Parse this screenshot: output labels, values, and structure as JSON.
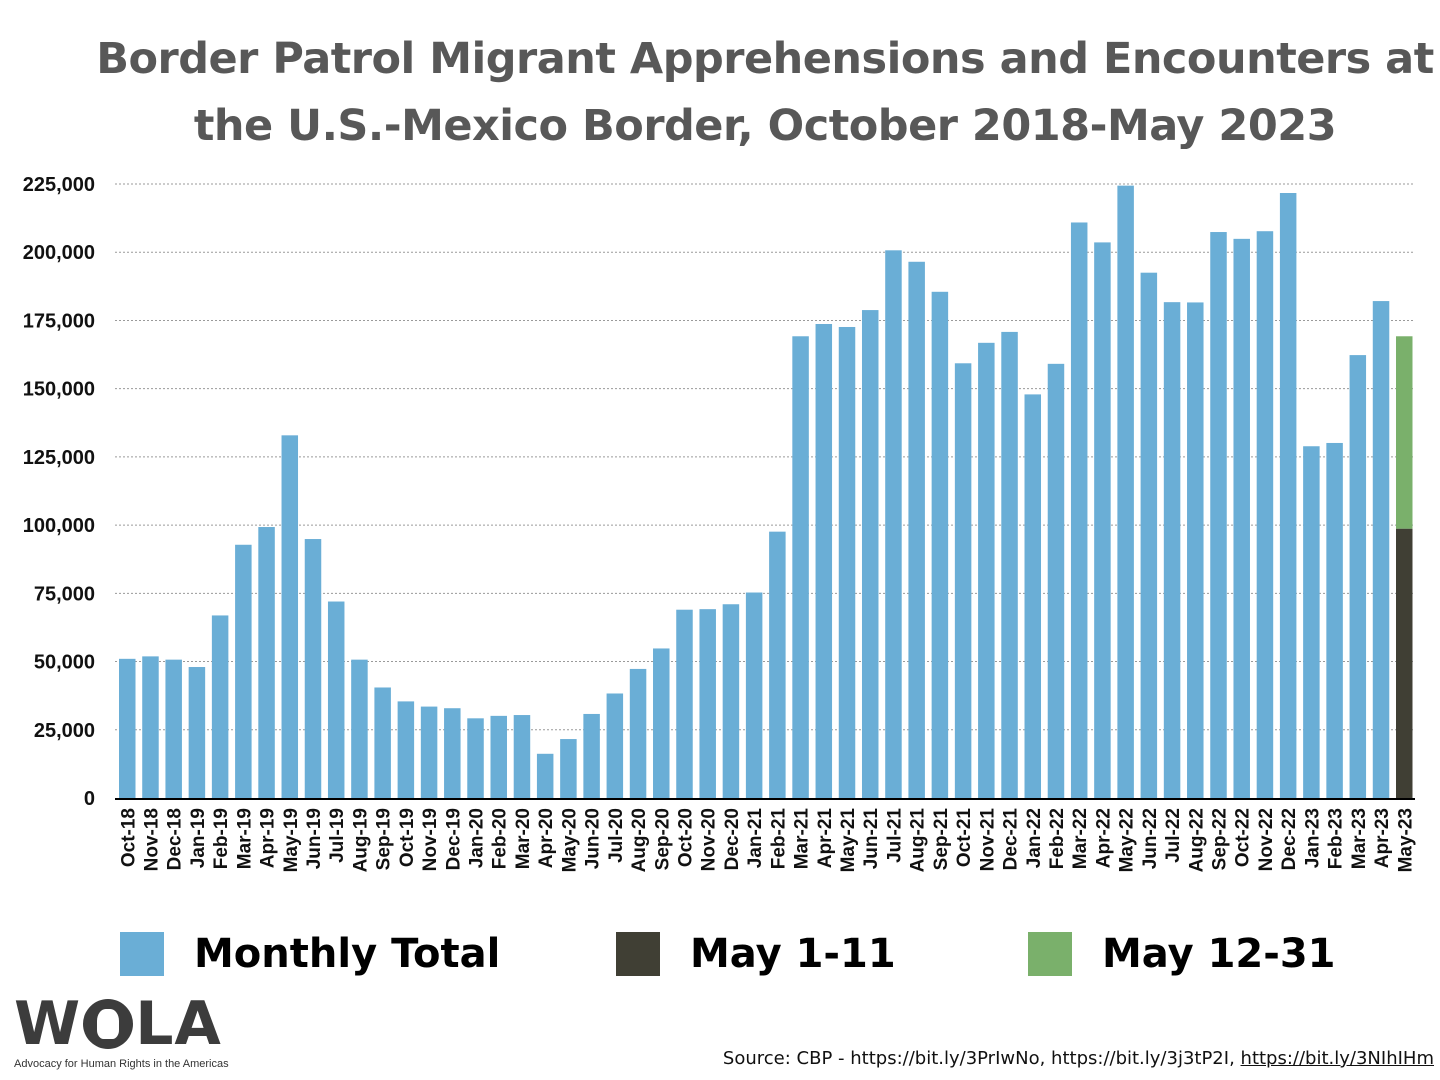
{
  "title_line1": "Border Patrol Migrant Apprehensions and Encounters at",
  "title_line2": "the U.S.-Mexico Border, October 2018-May 2023",
  "colors": {
    "monthly_total": "#6aaed6",
    "may_1_11": "#403f34",
    "may_12_31": "#7ab06b",
    "title": "#585858",
    "grid": "#9a9a9a"
  },
  "legend": [
    {
      "label": "Monthly Total",
      "color": "#6aaed6"
    },
    {
      "label": "May 1-11",
      "color": "#403f34"
    },
    {
      "label": "May 12-31",
      "color": "#7ab06b"
    }
  ],
  "logo": {
    "name": "WOLA",
    "tagline": "Advocacy for Human Rights in the Americas"
  },
  "source": {
    "prefix": "Source: CBP - ",
    "link1": "https://bit.ly/3PrIwNo",
    "sep1": ", ",
    "link2": "https://bit.ly/3j3tP2I",
    "sep2": ", ",
    "link3": "https://bit.ly/3NIhIHm"
  },
  "chart_data": {
    "type": "bar",
    "title": "Border Patrol Migrant Apprehensions and Encounters at the U.S.-Mexico Border, October 2018-May 2023",
    "xlabel": "",
    "ylabel": "",
    "ylim": [
      0,
      225000
    ],
    "yticks": [
      0,
      25000,
      50000,
      75000,
      100000,
      125000,
      150000,
      175000,
      200000,
      225000
    ],
    "ytick_labels": [
      "0",
      "25,000",
      "50,000",
      "75,000",
      "100,000",
      "125,000",
      "150,000",
      "175,000",
      "200,000",
      "225,000"
    ],
    "grid": true,
    "legend_position": "bottom",
    "categories": [
      "Oct-18",
      "Nov-18",
      "Dec-18",
      "Jan-19",
      "Feb-19",
      "Mar-19",
      "Apr-19",
      "May-19",
      "Jun-19",
      "Jul-19",
      "Aug-19",
      "Sep-19",
      "Oct-19",
      "Nov-19",
      "Dec-19",
      "Jan-20",
      "Feb-20",
      "Mar-20",
      "Apr-20",
      "May-20",
      "Jun-20",
      "Jul-20",
      "Aug-20",
      "Sep-20",
      "Oct-20",
      "Nov-20",
      "Dec-20",
      "Jan-21",
      "Feb-21",
      "Mar-21",
      "Apr-21",
      "May-21",
      "Jun-21",
      "Jul-21",
      "Aug-21",
      "Sep-21",
      "Oct-21",
      "Nov-21",
      "Dec-21",
      "Jan-22",
      "Feb-22",
      "Mar-22",
      "Apr-22",
      "May-22",
      "Jun-22",
      "Jul-22",
      "Aug-22",
      "Sep-22",
      "Oct-22",
      "Nov-22",
      "Dec-22",
      "Jan-23",
      "Feb-23",
      "Mar-23",
      "Apr-23",
      "May-23"
    ],
    "series": [
      {
        "name": "Monthly Total",
        "values": [
          51000,
          51900,
          50700,
          48000,
          66900,
          92800,
          99300,
          132900,
          94900,
          72000,
          50700,
          40500,
          35400,
          33500,
          32900,
          29200,
          30100,
          30400,
          16200,
          21600,
          30800,
          38300,
          47300,
          54800,
          69000,
          69200,
          71000,
          75300,
          97600,
          169200,
          173700,
          172600,
          178800,
          200700,
          196500,
          185500,
          159300,
          166800,
          170800,
          147900,
          159100,
          210900,
          203600,
          224400,
          192500,
          181700,
          181600,
          207400,
          204900,
          207700,
          221700,
          128900,
          130100,
          162300,
          182100,
          null
        ]
      },
      {
        "name": "May 1-11",
        "values": [
          null,
          null,
          null,
          null,
          null,
          null,
          null,
          null,
          null,
          null,
          null,
          null,
          null,
          null,
          null,
          null,
          null,
          null,
          null,
          null,
          null,
          null,
          null,
          null,
          null,
          null,
          null,
          null,
          null,
          null,
          null,
          null,
          null,
          null,
          null,
          null,
          null,
          null,
          null,
          null,
          null,
          null,
          null,
          null,
          null,
          null,
          null,
          null,
          null,
          null,
          null,
          null,
          null,
          null,
          null,
          98700
        ]
      },
      {
        "name": "May 12-31",
        "values": [
          null,
          null,
          null,
          null,
          null,
          null,
          null,
          null,
          null,
          null,
          null,
          null,
          null,
          null,
          null,
          null,
          null,
          null,
          null,
          null,
          null,
          null,
          null,
          null,
          null,
          null,
          null,
          null,
          null,
          null,
          null,
          null,
          null,
          null,
          null,
          null,
          null,
          null,
          null,
          null,
          null,
          null,
          null,
          null,
          null,
          null,
          null,
          null,
          null,
          null,
          null,
          null,
          null,
          null,
          null,
          70500
        ]
      }
    ]
  }
}
